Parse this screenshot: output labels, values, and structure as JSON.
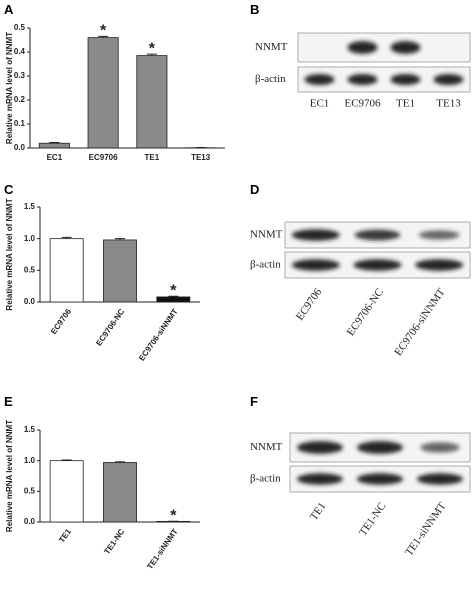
{
  "panel_labels": [
    "A",
    "B",
    "C",
    "D",
    "E",
    "F"
  ],
  "chart_data": [
    {
      "type": "bar",
      "ylabel": "Relative mRNA level of NNMT",
      "categories": [
        "EC1",
        "EC9706",
        "TE1",
        "TE13"
      ],
      "values": [
        0.02,
        0.46,
        0.385,
        0.001
      ],
      "errors": [
        0.003,
        0.005,
        0.006,
        0.001
      ],
      "colors": [
        "#8a8a8a",
        "#8a8a8a",
        "#8a8a8a",
        "#8a8a8a"
      ],
      "ylim": [
        0,
        0.5
      ],
      "yticks": [
        {
          "value": 0,
          "label": "0.0"
        },
        0.1,
        0.2,
        0.3,
        0.4,
        0.5
      ],
      "annotations": [
        {
          "text": "*",
          "category": "EC9706"
        },
        {
          "text": "*",
          "category": "TE1"
        }
      ]
    },
    {
      "type": "bar",
      "ylabel": "Relative mRNA level of NNMT",
      "categories": [
        "EC9706",
        "EC9706-NC",
        "EC9706-siNNMT"
      ],
      "values": [
        1.0,
        0.98,
        0.08
      ],
      "errors": [
        0.02,
        0.02,
        0.01
      ],
      "colors": [
        "#ffffff",
        "#8a8a8a",
        "#111111"
      ],
      "ylim": [
        0,
        1.5
      ],
      "yticks": [
        {
          "value": 0,
          "label": "0.0"
        },
        0.5,
        {
          "value": 1,
          "label": "1.0"
        },
        1.5
      ],
      "annotations": [
        {
          "text": "*",
          "category": "EC9706-siNNMT"
        }
      ]
    },
    {
      "type": "bar",
      "ylabel": "Relative mRNA level of NNMT",
      "categories": [
        "TE1",
        "TE1-NC",
        "TE1-siNNMT"
      ],
      "values": [
        1.0,
        0.97,
        0.01
      ],
      "errors": [
        0.01,
        0.01,
        0.003
      ],
      "colors": [
        "#ffffff",
        "#8a8a8a",
        "#111111"
      ],
      "ylim": [
        0,
        1.5
      ],
      "yticks": [
        {
          "value": 0,
          "label": "0.0"
        },
        0.5,
        {
          "value": 1,
          "label": "1.0"
        },
        1.5
      ],
      "annotations": [
        {
          "text": "*",
          "category": "TE1-siNNMT"
        }
      ]
    }
  ],
  "blots": [
    {
      "rows": [
        "NNMT",
        "β-actin"
      ],
      "lanes": [
        "EC1",
        "EC9706",
        "TE1",
        "TE13"
      ]
    },
    {
      "rows": [
        "NNMT",
        "β-actin"
      ],
      "lanes": [
        "EC9706",
        "EC9706-NC",
        "EC9706-siNNMT"
      ]
    },
    {
      "rows": [
        "NNMT",
        "β-actin"
      ],
      "lanes": [
        "TE1",
        "TE1-NC",
        "TE1-siNNMT"
      ]
    }
  ]
}
